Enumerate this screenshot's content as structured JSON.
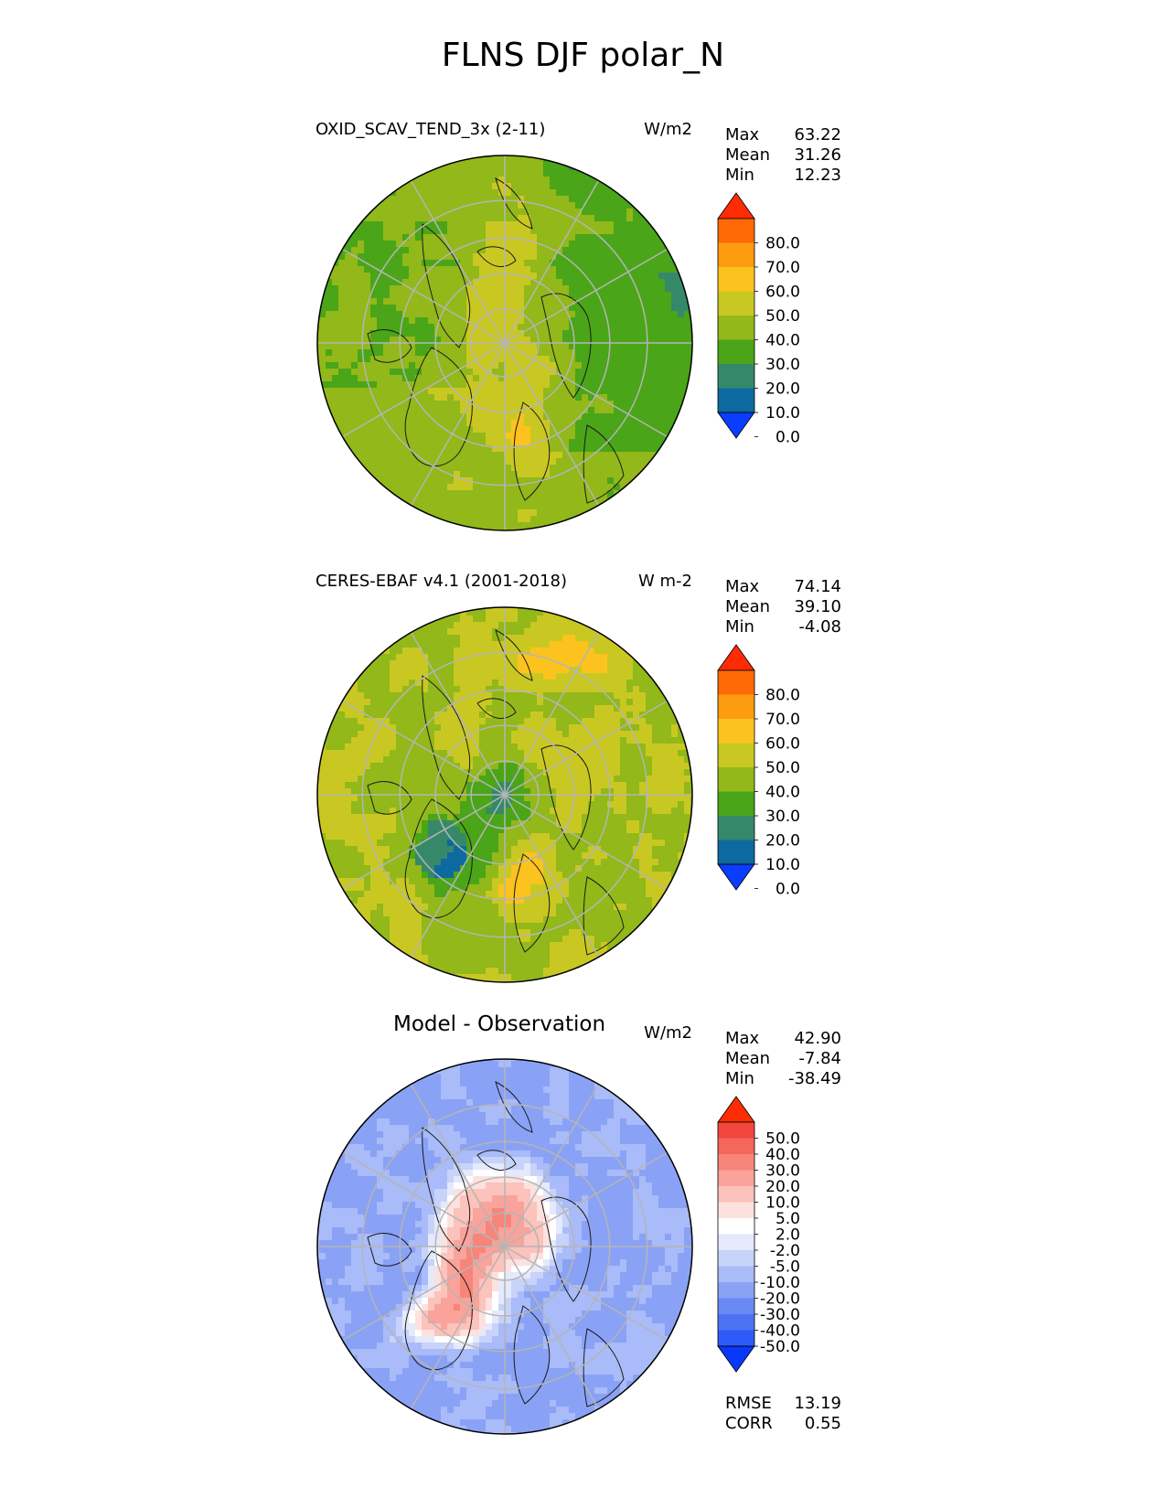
{
  "figure": {
    "title": "FLNS DJF polar_N"
  },
  "colors": {
    "absolute_levels": [
      "#0a3dff",
      "#0c6aa0",
      "#36886a",
      "#4aa518",
      "#92b81a",
      "#c9c822",
      "#fcc31e",
      "#fd9c10",
      "#fe6a06",
      "#fe2c04"
    ],
    "diff_levels": [
      "#0a38fb",
      "#2e5af7",
      "#4d73f5",
      "#6a8af3",
      "#8aa2f5",
      "#a9bbf8",
      "#c8d3fa",
      "#e4e9fc",
      "#ffffff",
      "#fde1df",
      "#fcc2bc",
      "#f9a39a",
      "#f7857a",
      "#f5665b",
      "#f3473d",
      "#fe2c04"
    ],
    "coastline": "#1a1a1a",
    "grid": "#b5b5b5"
  },
  "panels": [
    {
      "title": "OXID_SCAV_TEND_3x (2-11)",
      "units": "W/m2",
      "stats": [
        {
          "label": "Max",
          "value": "63.22"
        },
        {
          "label": "Mean",
          "value": "31.26"
        },
        {
          "label": "Min",
          "value": "12.23"
        }
      ],
      "colorbar_ticks": [
        "80.0",
        "70.0",
        "60.0",
        "50.0",
        "40.0",
        "30.0",
        "20.0",
        "10.0",
        "0.0"
      ]
    },
    {
      "title": "CERES-EBAF v4.1 (2001-2018)",
      "units": "W m-2",
      "stats": [
        {
          "label": "Max",
          "value": "74.14"
        },
        {
          "label": "Mean",
          "value": "39.10"
        },
        {
          "label": "Min",
          "value": "-4.08"
        }
      ],
      "colorbar_ticks": [
        "80.0",
        "70.0",
        "60.0",
        "50.0",
        "40.0",
        "30.0",
        "20.0",
        "10.0",
        "0.0"
      ]
    },
    {
      "title": "Model - Observation",
      "units": "W/m2",
      "stats": [
        {
          "label": "Max",
          "value": "42.90"
        },
        {
          "label": "Mean",
          "value": "-7.84"
        },
        {
          "label": "Min",
          "value": "-38.49"
        }
      ],
      "colorbar_ticks": [
        "50.0",
        "40.0",
        "30.0",
        "20.0",
        "10.0",
        "5.0",
        "2.0",
        "-2.0",
        "-5.0",
        "-10.0",
        "-20.0",
        "-30.0",
        "-40.0",
        "-50.0"
      ],
      "metrics": [
        {
          "label": "RMSE",
          "value": "13.19"
        },
        {
          "label": "CORR",
          "value": "0.55"
        }
      ]
    }
  ],
  "chart_data": [
    {
      "type": "heatmap",
      "projection": "north polar stereographic",
      "title": "OXID_SCAV_TEND_3x (2-11)",
      "units": "W/m2",
      "max": 63.22,
      "mean": 31.26,
      "min": 12.23,
      "colorbar_levels": [
        0,
        10,
        20,
        30,
        40,
        50,
        60,
        70,
        80
      ],
      "colorbar_extend": "both"
    },
    {
      "type": "heatmap",
      "projection": "north polar stereographic",
      "title": "CERES-EBAF v4.1 (2001-2018)",
      "units": "W m-2",
      "max": 74.14,
      "mean": 39.1,
      "min": -4.08,
      "colorbar_levels": [
        0,
        10,
        20,
        30,
        40,
        50,
        60,
        70,
        80
      ],
      "colorbar_extend": "both"
    },
    {
      "type": "heatmap",
      "projection": "north polar stereographic",
      "title": "Model - Observation",
      "units": "W/m2",
      "max": 42.9,
      "mean": -7.84,
      "min": -38.49,
      "rmse": 13.19,
      "corr": 0.55,
      "colorbar_levels": [
        -50,
        -40,
        -30,
        -20,
        -10,
        -5,
        -2,
        2,
        5,
        10,
        20,
        30,
        40,
        50
      ],
      "colorbar_extend": "both"
    }
  ]
}
